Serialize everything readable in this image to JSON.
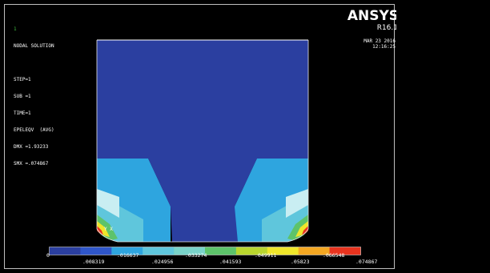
{
  "window": {
    "index": "1"
  },
  "info": {
    "title": "NODAL SOLUTION",
    "lines": [
      "STEP=1",
      "SUB =1",
      "TIME=1",
      "EPELEQV  (AVG)",
      "DMX =1.93233",
      "SMX =.074867"
    ]
  },
  "logo": {
    "brand": "ANSYS",
    "version": "R16.1"
  },
  "timestamp": {
    "date": "MAR 23 2016",
    "time": "12:16:25"
  },
  "triad": {
    "axis": "Y X"
  },
  "colors": {
    "bands": [
      "#2b3fa0",
      "#2f56c9",
      "#2ea5df",
      "#5fc6dc",
      "#79d3c9",
      "#5dc36a",
      "#b9d62e",
      "#efe62a",
      "#f3a722",
      "#e8331e"
    ]
  },
  "legend": {
    "upper": [
      "0",
      ".016637",
      ".033274",
      ".049911",
      ".066548"
    ],
    "lower": [
      ".008319",
      ".024956",
      ".041593",
      ".05823",
      ".074867"
    ]
  }
}
